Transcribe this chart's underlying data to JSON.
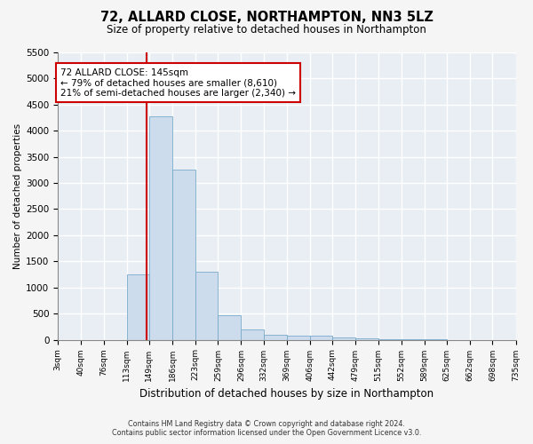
{
  "title": "72, ALLARD CLOSE, NORTHAMPTON, NN3 5LZ",
  "subtitle": "Size of property relative to detached houses in Northampton",
  "xlabel": "Distribution of detached houses by size in Northampton",
  "ylabel": "Number of detached properties",
  "footer_line1": "Contains HM Land Registry data © Crown copyright and database right 2024.",
  "footer_line2": "Contains public sector information licensed under the Open Government Licence v3.0.",
  "bar_color": "#ccdcec",
  "bar_edge_color": "#7aaaca",
  "plot_bg_color": "#e8eef4",
  "fig_bg_color": "#f5f5f5",
  "grid_color": "#ffffff",
  "property_sqm": 145,
  "property_line_color": "#cc0000",
  "annotation_line1": "72 ALLARD CLOSE: 145sqm",
  "annotation_line2": "← 79% of detached houses are smaller (8,610)",
  "annotation_line3": "21% of semi-detached houses are larger (2,340) →",
  "annotation_box_color": "#cc0000",
  "ylim": [
    0,
    5500
  ],
  "yticks": [
    0,
    500,
    1000,
    1500,
    2000,
    2500,
    3000,
    3500,
    4000,
    4500,
    5000,
    5500
  ],
  "bin_edges": [
    3,
    40,
    76,
    113,
    149,
    186,
    223,
    259,
    296,
    332,
    369,
    406,
    442,
    479,
    515,
    552,
    589,
    625,
    662,
    698,
    735
  ],
  "bin_counts": [
    0,
    0,
    0,
    1250,
    4270,
    3260,
    1300,
    470,
    195,
    100,
    75,
    70,
    45,
    20,
    8,
    4,
    2,
    1,
    0,
    0
  ]
}
